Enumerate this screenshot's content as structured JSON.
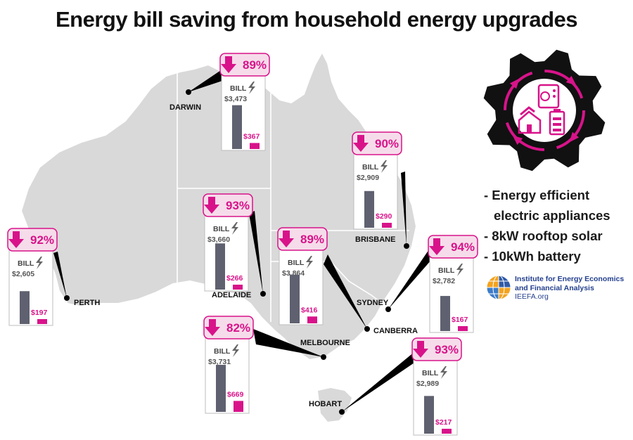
{
  "title": "Energy bill saving from household energy upgrades",
  "bill_label": "BILL",
  "upgrades": [
    "- Energy efficient",
    "electric appliances",
    "- 8kW rooftop solar",
    "- 10kWh battery"
  ],
  "logo": {
    "line1": "Institute for Energy Economics",
    "line2": "and Financial Analysis",
    "url": "IEEFA.org"
  },
  "colors": {
    "accent": "#d8138a",
    "accent_bg": "#f6dcea",
    "bar_before": "#5f6170",
    "map_fill": "#d9d9d9",
    "gear": "#111111"
  },
  "icons": [
    "down-arrow-icon",
    "lightning-icon",
    "gear-icon",
    "appliance-icon",
    "house-solar-icon",
    "battery-icon",
    "cycle-arrows-icon"
  ],
  "chart_data": {
    "type": "bar",
    "title": "Energy bill saving from household energy upgrades",
    "categories": [
      "Darwin",
      "Perth",
      "Adelaide",
      "Melbourne",
      "Canberra",
      "Brisbane",
      "Sydney",
      "Hobart"
    ],
    "series": [
      {
        "values": [
          3473,
          2605,
          3660,
          3731,
          3864,
          2909,
          2782,
          2989
        ]
      },
      {
        "values": [
          367,
          197,
          266,
          669,
          416,
          290,
          167,
          217
        ]
      }
    ],
    "cities": [
      {
        "name": "DARWIN",
        "saving": "89%",
        "before": 3473,
        "after": 367,
        "before_label": "$3,473",
        "after_label": "$367"
      },
      {
        "name": "PERTH",
        "saving": "92%",
        "before": 2605,
        "after": 197,
        "before_label": "$2,605",
        "after_label": "$197"
      },
      {
        "name": "ADELAIDE",
        "saving": "93%",
        "before": 3660,
        "after": 266,
        "before_label": "$3,660",
        "after_label": "$266"
      },
      {
        "name": "MELBOURNE",
        "saving": "82%",
        "before": 3731,
        "after": 669,
        "before_label": "$3,731",
        "after_label": "$669"
      },
      {
        "name": "CANBERRA",
        "saving": "89%",
        "before": 3864,
        "after": 416,
        "before_label": "$3,864",
        "after_label": "$416"
      },
      {
        "name": "BRISBANE",
        "saving": "90%",
        "before": 2909,
        "after": 290,
        "before_label": "$2,909",
        "after_label": "$290"
      },
      {
        "name": "SYDNEY",
        "saving": "94%",
        "before": 2782,
        "after": 167,
        "before_label": "$2,782",
        "after_label": "$167"
      },
      {
        "name": "HOBART",
        "saving": "93%",
        "before": 2989,
        "after": 217,
        "before_label": "$2,989",
        "after_label": "$217"
      }
    ]
  }
}
